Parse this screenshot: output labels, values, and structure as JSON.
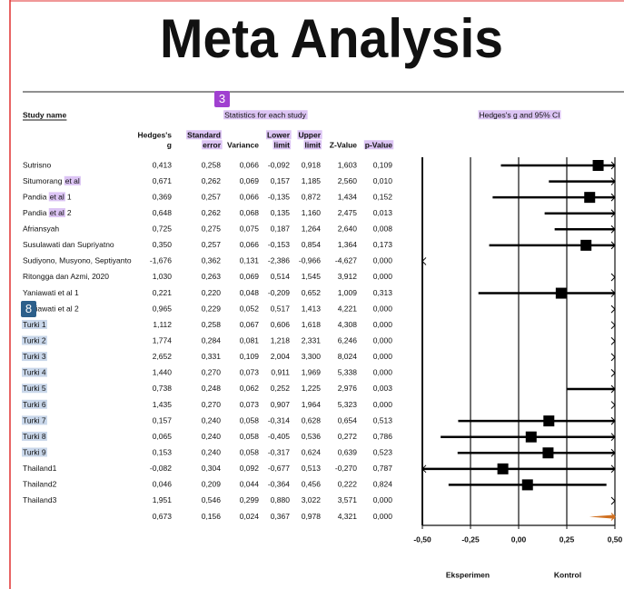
{
  "title": "Meta Analysis",
  "badges": [
    "3",
    "8"
  ],
  "section_labels": {
    "study": "Study name",
    "stats": "Statistics for each study",
    "ci": "Hedges's g and 95% CI"
  },
  "headers": [
    {
      "lines": [
        "Hedges's",
        "g"
      ],
      "highlight": false
    },
    {
      "lines": [
        "Standard",
        "error"
      ],
      "highlight": true
    },
    {
      "lines": [
        "Variance"
      ],
      "highlight": false
    },
    {
      "lines": [
        "Lower",
        "limit"
      ],
      "highlight": true
    },
    {
      "lines": [
        "Upper",
        "limit"
      ],
      "highlight": true
    },
    {
      "lines": [
        "Z-Value"
      ],
      "highlight": false
    },
    {
      "lines": [
        "p-Value"
      ],
      "highlight": true
    }
  ],
  "rows": [
    {
      "name": [
        {
          "text": "Sutrisno"
        }
      ],
      "values": [
        "0,413",
        "0,258",
        "0,066",
        "-0,092",
        "0,918",
        "1,603",
        "0,109"
      ]
    },
    {
      "name": [
        {
          "text": "Situmorang"
        },
        {
          "text": "et al",
          "highlight": true
        }
      ],
      "values": [
        "0,671",
        "0,262",
        "0,069",
        "0,157",
        "1,185",
        "2,560",
        "0,010"
      ]
    },
    {
      "name": [
        {
          "text": "Pandia"
        },
        {
          "text": "et al",
          "highlight": true
        },
        {
          "text": "1"
        }
      ],
      "values": [
        "0,369",
        "0,257",
        "0,066",
        "-0,135",
        "0,872",
        "1,434",
        "0,152"
      ]
    },
    {
      "name": [
        {
          "text": "Pandia"
        },
        {
          "text": "et al",
          "highlight": true
        },
        {
          "text": "2"
        }
      ],
      "values": [
        "0,648",
        "0,262",
        "0,068",
        "0,135",
        "1,160",
        "2,475",
        "0,013"
      ]
    },
    {
      "name": [
        {
          "text": "Afriansyah"
        }
      ],
      "values": [
        "0,725",
        "0,275",
        "0,075",
        "0,187",
        "1,264",
        "2,640",
        "0,008"
      ]
    },
    {
      "name": [
        {
          "text": "Susulawati dan Supriyatno"
        }
      ],
      "values": [
        "0,350",
        "0,257",
        "0,066",
        "-0,153",
        "0,854",
        "1,364",
        "0,173"
      ]
    },
    {
      "name": [
        {
          "text": "Sudiyono, Musyono, Septiyanto"
        }
      ],
      "values": [
        "-1,676",
        "0,362",
        "0,131",
        "-2,386",
        "-0,966",
        "-4,627",
        "0,000"
      ]
    },
    {
      "name": [
        {
          "text": "Ritongga dan Azmi, 2020"
        }
      ],
      "values": [
        "1,030",
        "0,263",
        "0,069",
        "0,514",
        "1,545",
        "3,912",
        "0,000"
      ]
    },
    {
      "name": [
        {
          "text": "Yaniawati et al 1"
        }
      ],
      "values": [
        "0,221",
        "0,220",
        "0,048",
        "-0,209",
        "0,652",
        "1,009",
        "0,313"
      ]
    },
    {
      "name": [
        {
          "text": "Yaniawati et al 2"
        }
      ],
      "values": [
        "0,965",
        "0,229",
        "0,052",
        "0,517",
        "1,413",
        "4,221",
        "0,000"
      ]
    },
    {
      "name": [
        {
          "text": "Turki 1",
          "highlight": true
        }
      ],
      "values": [
        "1,112",
        "0,258",
        "0,067",
        "0,606",
        "1,618",
        "4,308",
        "0,000"
      ]
    },
    {
      "name": [
        {
          "text": "Turki 2",
          "highlight": true
        }
      ],
      "values": [
        "1,774",
        "0,284",
        "0,081",
        "1,218",
        "2,331",
        "6,246",
        "0,000"
      ]
    },
    {
      "name": [
        {
          "text": "Turki 3",
          "highlight": true
        }
      ],
      "values": [
        "2,652",
        "0,331",
        "0,109",
        "2,004",
        "3,300",
        "8,024",
        "0,000"
      ]
    },
    {
      "name": [
        {
          "text": "Turki 4",
          "highlight": true
        }
      ],
      "values": [
        "1,440",
        "0,270",
        "0,073",
        "0,911",
        "1,969",
        "5,338",
        "0,000"
      ]
    },
    {
      "name": [
        {
          "text": "Turki 5",
          "highlight": true
        }
      ],
      "values": [
        "0,738",
        "0,248",
        "0,062",
        "0,252",
        "1,225",
        "2,976",
        "0,003"
      ]
    },
    {
      "name": [
        {
          "text": "Turki 6",
          "highlight": true
        }
      ],
      "values": [
        "1,435",
        "0,270",
        "0,073",
        "0,907",
        "1,964",
        "5,323",
        "0,000"
      ]
    },
    {
      "name": [
        {
          "text": "Turki 7",
          "highlight": true
        }
      ],
      "values": [
        "0,157",
        "0,240",
        "0,058",
        "-0,314",
        "0,628",
        "0,654",
        "0,513"
      ]
    },
    {
      "name": [
        {
          "text": "Turki 8",
          "highlight": true
        }
      ],
      "values": [
        "0,065",
        "0,240",
        "0,058",
        "-0,405",
        "0,536",
        "0,272",
        "0,786"
      ]
    },
    {
      "name": [
        {
          "text": "Turki 9",
          "highlight": true
        }
      ],
      "values": [
        "0,153",
        "0,240",
        "0,058",
        "-0,317",
        "0,624",
        "0,639",
        "0,523"
      ]
    },
    {
      "name": [
        {
          "text": "Thailand1"
        }
      ],
      "values": [
        "-0,082",
        "0,304",
        "0,092",
        "-0,677",
        "0,513",
        "-0,270",
        "0,787"
      ]
    },
    {
      "name": [
        {
          "text": "Thailand2"
        }
      ],
      "values": [
        "0,046",
        "0,209",
        "0,044",
        "-0,364",
        "0,456",
        "0,222",
        "0,824"
      ]
    },
    {
      "name": [
        {
          "text": "Thailand3"
        }
      ],
      "values": [
        "1,951",
        "0,546",
        "0,299",
        "0,880",
        "3,022",
        "3,571",
        "0,000"
      ]
    }
  ],
  "summary": [
    "0,673",
    "0,156",
    "0,024",
    "0,367",
    "0,978",
    "4,321",
    "0,000"
  ],
  "axis_ticks": [
    "-0,50",
    "-0,25",
    "0,00",
    "0,25",
    "0,50"
  ],
  "favours": [
    "Eksperimen",
    "Kontrol"
  ]
}
